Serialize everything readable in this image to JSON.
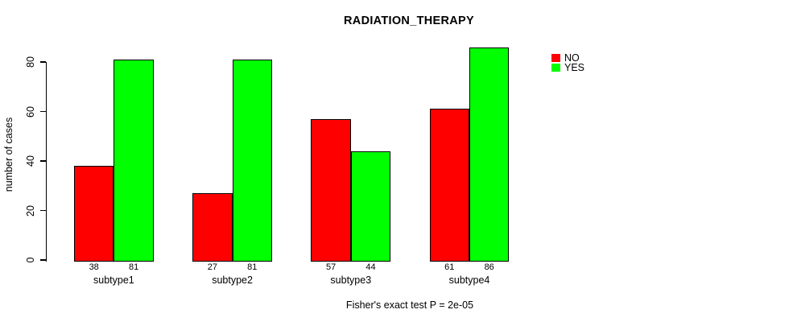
{
  "chart_data": {
    "type": "bar",
    "title": "RADIATION_THERAPY",
    "ylabel": "number of cases",
    "xlabel": "",
    "categories": [
      "subtype1",
      "subtype2",
      "subtype3",
      "subtype4"
    ],
    "series": [
      {
        "name": "NO",
        "color": "#ff0000",
        "values": [
          38,
          27,
          57,
          61
        ]
      },
      {
        "name": "YES",
        "color": "#00ff00",
        "values": [
          81,
          81,
          44,
          86
        ]
      }
    ],
    "yticks": [
      0,
      20,
      40,
      60,
      80
    ],
    "ylim": [
      0,
      86
    ],
    "grid": false,
    "bar_value_labels_shown": true,
    "legend": {
      "position": "right-outside",
      "entries": [
        "NO",
        "YES"
      ]
    },
    "annotation": "Fisher's exact test P = 2e-05",
    "colors": {
      "axis": "#000000",
      "background": "#ffffff",
      "bar_border": "#000000"
    }
  }
}
